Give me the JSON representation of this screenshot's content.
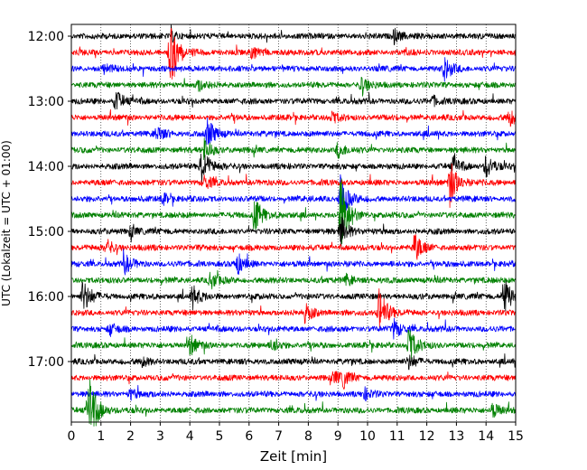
{
  "chart_data": {
    "type": "line",
    "title": "",
    "xlabel": "Zeit  [min]",
    "ylabel": "UTC (Lokalzeit = UTC + 01:00)",
    "xlim": [
      0,
      15
    ],
    "x_ticks": [
      0,
      1,
      2,
      3,
      4,
      5,
      6,
      7,
      8,
      9,
      10,
      11,
      12,
      13,
      14,
      15
    ],
    "x_tick_labels": [
      "0",
      "1",
      "2",
      "3",
      "4",
      "5",
      "6",
      "7",
      "8",
      "9",
      "10",
      "11",
      "12",
      "13",
      "14",
      "15"
    ],
    "y_tick_labels": [
      "12:00",
      "13:00",
      "14:00",
      "15:00",
      "16:00",
      "17:00"
    ],
    "grid": "vertical dotted",
    "trace_minutes": 15,
    "series_colors": [
      "#000000",
      "#ff0000",
      "#0000ff",
      "#008000"
    ],
    "traces": [
      {
        "start": "12:00",
        "color": "#000000",
        "events": [
          [
            10.9,
            0.55
          ],
          [
            3.4,
            0.35
          ]
        ]
      },
      {
        "start": "12:15",
        "color": "#ff0000",
        "events": [
          [
            3.35,
            2.6
          ],
          [
            6.1,
            0.45
          ]
        ]
      },
      {
        "start": "12:30",
        "color": "#0000ff",
        "events": [
          [
            12.6,
            0.9
          ],
          [
            1.1,
            0.35
          ]
        ]
      },
      {
        "start": "12:45",
        "color": "#008000",
        "events": [
          [
            9.8,
            0.6
          ],
          [
            4.3,
            0.4
          ]
        ]
      },
      {
        "start": "13:00",
        "color": "#000000",
        "events": [
          [
            1.5,
            0.8
          ],
          [
            12.2,
            0.4
          ]
        ]
      },
      {
        "start": "13:15",
        "color": "#ff0000",
        "events": [
          [
            14.8,
            0.6
          ],
          [
            8.8,
            0.35
          ]
        ]
      },
      {
        "start": "13:30",
        "color": "#0000ff",
        "events": [
          [
            4.6,
            1.1
          ],
          [
            2.9,
            0.55
          ]
        ]
      },
      {
        "start": "13:45",
        "color": "#008000",
        "events": [
          [
            9.0,
            0.6
          ],
          [
            4.5,
            0.9
          ]
        ]
      },
      {
        "start": "14:00",
        "color": "#000000",
        "events": [
          [
            4.4,
            1.6
          ],
          [
            12.9,
            0.7
          ],
          [
            14.0,
            0.9
          ]
        ]
      },
      {
        "start": "14:15",
        "color": "#ff0000",
        "events": [
          [
            12.8,
            1.8
          ],
          [
            4.5,
            0.5
          ]
        ]
      },
      {
        "start": "14:30",
        "color": "#0000ff",
        "events": [
          [
            9.1,
            1.6
          ],
          [
            3.1,
            0.4
          ]
        ]
      },
      {
        "start": "14:45",
        "color": "#008000",
        "events": [
          [
            9.1,
            3.1
          ],
          [
            6.2,
            1.4
          ]
        ]
      },
      {
        "start": "15:00",
        "color": "#000000",
        "events": [
          [
            9.1,
            1.2
          ],
          [
            2.0,
            0.4
          ]
        ]
      },
      {
        "start": "15:15",
        "color": "#ff0000",
        "events": [
          [
            11.6,
            1.1
          ],
          [
            1.2,
            0.6
          ]
        ]
      },
      {
        "start": "15:30",
        "color": "#0000ff",
        "events": [
          [
            5.6,
            0.8
          ],
          [
            1.8,
            0.7
          ]
        ]
      },
      {
        "start": "15:45",
        "color": "#008000",
        "events": [
          [
            4.7,
            0.6
          ],
          [
            9.3,
            0.4
          ]
        ]
      },
      {
        "start": "16:00",
        "color": "#000000",
        "events": [
          [
            14.6,
            1.6
          ],
          [
            0.4,
            1.3
          ],
          [
            4.1,
            0.8
          ]
        ]
      },
      {
        "start": "16:15",
        "color": "#ff0000",
        "events": [
          [
            10.4,
            1.9
          ],
          [
            7.9,
            0.7
          ]
        ]
      },
      {
        "start": "16:30",
        "color": "#0000ff",
        "events": [
          [
            10.9,
            0.7
          ],
          [
            1.3,
            0.4
          ]
        ]
      },
      {
        "start": "16:45",
        "color": "#008000",
        "events": [
          [
            11.4,
            1.4
          ],
          [
            4.0,
            0.8
          ],
          [
            6.8,
            0.6
          ]
        ]
      },
      {
        "start": "17:00",
        "color": "#000000",
        "events": [
          [
            11.4,
            0.5
          ],
          [
            2.4,
            0.3
          ]
        ]
      },
      {
        "start": "17:15",
        "color": "#ff0000",
        "events": [
          [
            9.2,
            0.6
          ],
          [
            8.9,
            0.4
          ]
        ]
      },
      {
        "start": "17:30",
        "color": "#0000ff",
        "events": [
          [
            2.0,
            0.4
          ],
          [
            9.9,
            0.4
          ]
        ]
      },
      {
        "start": "17:45",
        "color": "#008000",
        "events": [
          [
            0.6,
            3.0
          ],
          [
            14.2,
            0.6
          ]
        ]
      }
    ]
  }
}
